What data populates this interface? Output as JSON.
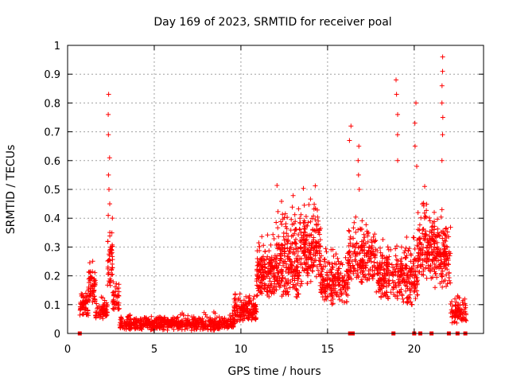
{
  "chart_data": {
    "type": "scatter",
    "title": "Day 169 of 2023, SRMTID for receiver poal",
    "xlabel": "GPS time / hours",
    "ylabel": "SRMTID / TECUs",
    "xlim": [
      0,
      24
    ],
    "ylim": [
      0,
      1
    ],
    "xticks": [
      "0",
      "5",
      "10",
      "15",
      "20"
    ],
    "xtick_values": [
      0,
      5,
      10,
      15,
      20
    ],
    "yticks": [
      "0",
      "0.1",
      "0.2",
      "0.3",
      "0.4",
      "0.5",
      "0.6",
      "0.7",
      "0.8",
      "0.9",
      "1"
    ],
    "ytick_values": [
      0,
      0.1,
      0.2,
      0.3,
      0.4,
      0.5,
      0.6,
      0.7,
      0.8,
      0.9,
      1.0
    ],
    "grid": true,
    "marker": "+",
    "color": "#ff0000",
    "series": [
      {
        "name": "SRMTID",
        "segments": [
          {
            "x_start": 0.7,
            "x_end": 1.2,
            "y_min": 0.05,
            "y_max": 0.19,
            "count": 60
          },
          {
            "x_start": 1.2,
            "x_end": 1.6,
            "y_min": 0.1,
            "y_max": 0.3,
            "count": 60
          },
          {
            "x_start": 1.6,
            "x_end": 2.3,
            "y_min": 0.05,
            "y_max": 0.14,
            "count": 70
          },
          {
            "x_start": 2.3,
            "x_end": 2.6,
            "y_min": 0.15,
            "y_max": 0.45,
            "count": 45
          },
          {
            "x_start": 2.6,
            "x_end": 3.0,
            "y_min": 0.07,
            "y_max": 0.22,
            "count": 40
          },
          {
            "x_start": 3.0,
            "x_end": 9.6,
            "y_min": 0.01,
            "y_max": 0.08,
            "count": 600
          },
          {
            "x_start": 9.6,
            "x_end": 10.9,
            "y_min": 0.04,
            "y_max": 0.16,
            "count": 160
          },
          {
            "x_start": 10.9,
            "x_end": 12.0,
            "y_min": 0.12,
            "y_max": 0.38,
            "count": 170
          },
          {
            "x_start": 12.0,
            "x_end": 13.4,
            "y_min": 0.11,
            "y_max": 0.55,
            "count": 230
          },
          {
            "x_start": 13.4,
            "x_end": 14.6,
            "y_min": 0.16,
            "y_max": 0.55,
            "count": 190
          },
          {
            "x_start": 14.6,
            "x_end": 16.2,
            "y_min": 0.1,
            "y_max": 0.33,
            "count": 200
          },
          {
            "x_start": 16.2,
            "x_end": 17.8,
            "y_min": 0.17,
            "y_max": 0.44,
            "count": 190
          },
          {
            "x_start": 17.8,
            "x_end": 19.3,
            "y_min": 0.1,
            "y_max": 0.4,
            "count": 180
          },
          {
            "x_start": 19.3,
            "x_end": 20.2,
            "y_min": 0.1,
            "y_max": 0.38,
            "count": 120
          },
          {
            "x_start": 20.2,
            "x_end": 21.2,
            "y_min": 0.18,
            "y_max": 0.55,
            "count": 150
          },
          {
            "x_start": 21.2,
            "x_end": 22.1,
            "y_min": 0.15,
            "y_max": 0.5,
            "count": 130
          },
          {
            "x_start": 22.1,
            "x_end": 23.0,
            "y_min": 0.03,
            "y_max": 0.16,
            "count": 90
          }
        ],
        "spikes": [
          {
            "x": 2.4,
            "values": [
              0.83,
              0.76,
              0.69,
              0.61,
              0.55,
              0.5,
              0.45,
              0.41
            ]
          },
          {
            "x": 16.3,
            "values": [
              0.72,
              0.67
            ]
          },
          {
            "x": 16.8,
            "values": [
              0.65,
              0.6,
              0.55,
              0.5
            ]
          },
          {
            "x": 19.0,
            "values": [
              0.88,
              0.83,
              0.76,
              0.69,
              0.6
            ]
          },
          {
            "x": 20.1,
            "values": [
              0.8,
              0.73,
              0.65,
              0.58
            ]
          },
          {
            "x": 21.6,
            "values": [
              0.96,
              0.91,
              0.86,
              0.8,
              0.75,
              0.69,
              0.6
            ]
          }
        ],
        "zero_points": [
          0.7,
          16.3,
          16.45,
          18.8,
          20.0,
          20.35,
          21.0,
          22.0,
          22.5,
          22.95
        ]
      }
    ]
  }
}
